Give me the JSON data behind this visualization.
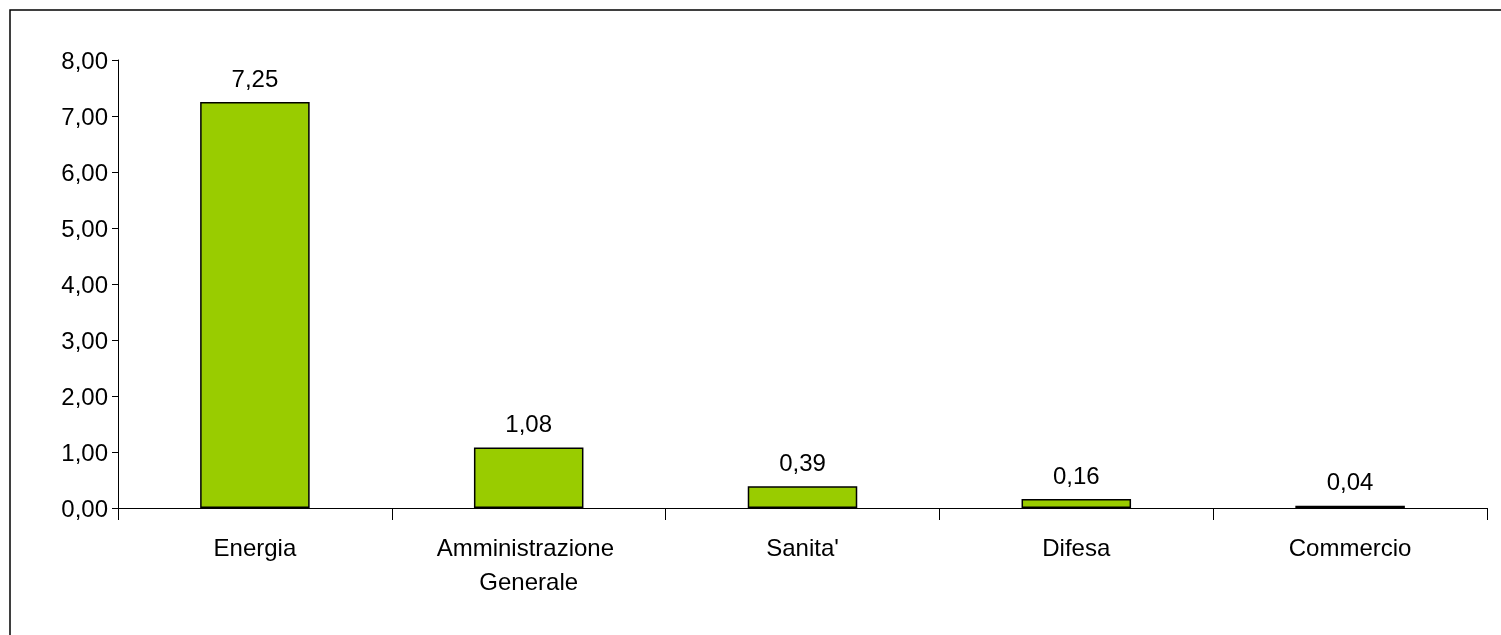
{
  "chart_data": {
    "type": "bar",
    "categories": [
      "Energia",
      "Amministrazione Generale",
      "Sanita'",
      "Difesa",
      "Commercio"
    ],
    "values": [
      7.25,
      1.08,
      0.39,
      0.16,
      0.04
    ],
    "value_labels": [
      "7,25",
      "1,08",
      "0,39",
      "0,16",
      "0,04"
    ],
    "color": "#99cc00",
    "ylim": [
      0,
      8
    ],
    "yticks": [
      {
        "value": 0,
        "label": "0,00"
      },
      {
        "value": 1,
        "label": "1,00"
      },
      {
        "value": 2,
        "label": "2,00"
      },
      {
        "value": 3,
        "label": "3,00"
      },
      {
        "value": 4,
        "label": "4,00"
      },
      {
        "value": 5,
        "label": "5,00"
      },
      {
        "value": 6,
        "label": "6,00"
      },
      {
        "value": 7,
        "label": "7,00"
      },
      {
        "value": 8,
        "label": "8,00"
      }
    ],
    "grid": false
  }
}
